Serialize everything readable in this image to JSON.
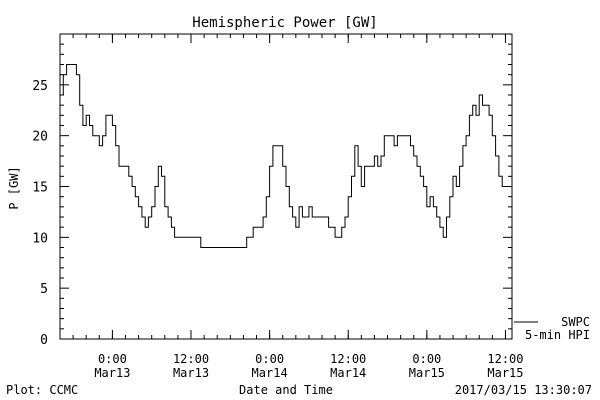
{
  "chart_data": {
    "type": "line",
    "title": "Hemispheric Power [GW]",
    "xlabel": "Date and Time",
    "ylabel": "P [GW]",
    "ylim": [
      0,
      30
    ],
    "y_ticks": [
      0,
      5,
      10,
      15,
      20,
      25
    ],
    "xlim": [
      "2017-03-12T16:00",
      "2017-03-15T13:00"
    ],
    "x_ticks": [
      {
        "t": "2017-03-13T00:00",
        "line1": "0:00",
        "line2": "Mar13"
      },
      {
        "t": "2017-03-13T12:00",
        "line1": "12:00",
        "line2": "Mar13"
      },
      {
        "t": "2017-03-14T00:00",
        "line1": "0:00",
        "line2": "Mar14"
      },
      {
        "t": "2017-03-14T12:00",
        "line1": "12:00",
        "line2": "Mar14"
      },
      {
        "t": "2017-03-15T00:00",
        "line1": "0:00",
        "line2": "Mar15"
      },
      {
        "t": "2017-03-15T12:00",
        "line1": "12:00",
        "line2": "Mar15"
      }
    ],
    "grid": false,
    "legend_position": "bottom-right, outside plot",
    "series": [
      {
        "name": "SWPC",
        "color": "#000000",
        "points": [
          [
            "2017-03-12T16:00",
            24
          ],
          [
            "2017-03-12T16:30",
            26
          ],
          [
            "2017-03-12T17:00",
            27
          ],
          [
            "2017-03-12T18:00",
            27
          ],
          [
            "2017-03-12T18:30",
            26
          ],
          [
            "2017-03-12T19:00",
            23
          ],
          [
            "2017-03-12T19:30",
            21
          ],
          [
            "2017-03-12T20:00",
            22
          ],
          [
            "2017-03-12T20:30",
            21
          ],
          [
            "2017-03-12T21:00",
            20
          ],
          [
            "2017-03-12T22:00",
            19
          ],
          [
            "2017-03-12T22:30",
            20
          ],
          [
            "2017-03-12T23:00",
            22
          ],
          [
            "2017-03-12T23:30",
            22
          ],
          [
            "2017-03-13T00:00",
            21
          ],
          [
            "2017-03-13T00:30",
            19
          ],
          [
            "2017-03-13T01:00",
            17
          ],
          [
            "2017-03-13T02:00",
            17
          ],
          [
            "2017-03-13T02:30",
            16
          ],
          [
            "2017-03-13T03:00",
            15
          ],
          [
            "2017-03-13T03:30",
            14
          ],
          [
            "2017-03-13T04:00",
            13
          ],
          [
            "2017-03-13T04:30",
            12
          ],
          [
            "2017-03-13T05:00",
            11
          ],
          [
            "2017-03-13T05:30",
            12
          ],
          [
            "2017-03-13T06:00",
            13
          ],
          [
            "2017-03-13T06:30",
            15
          ],
          [
            "2017-03-13T07:00",
            17
          ],
          [
            "2017-03-13T07:30",
            16
          ],
          [
            "2017-03-13T08:00",
            13
          ],
          [
            "2017-03-13T08:30",
            12
          ],
          [
            "2017-03-13T09:00",
            11
          ],
          [
            "2017-03-13T09:30",
            10
          ],
          [
            "2017-03-13T11:00",
            10
          ],
          [
            "2017-03-13T12:00",
            10
          ],
          [
            "2017-03-13T13:00",
            10
          ],
          [
            "2017-03-13T13:30",
            9
          ],
          [
            "2017-03-13T15:00",
            9
          ],
          [
            "2017-03-13T17:00",
            9
          ],
          [
            "2017-03-13T19:00",
            9
          ],
          [
            "2017-03-13T20:00",
            9
          ],
          [
            "2017-03-13T20:30",
            10
          ],
          [
            "2017-03-13T21:00",
            10
          ],
          [
            "2017-03-13T21:30",
            11
          ],
          [
            "2017-03-13T22:30",
            11
          ],
          [
            "2017-03-13T23:00",
            12
          ],
          [
            "2017-03-13T23:30",
            14
          ],
          [
            "2017-03-14T00:00",
            17
          ],
          [
            "2017-03-14T00:30",
            19
          ],
          [
            "2017-03-14T01:30",
            19
          ],
          [
            "2017-03-14T02:00",
            17
          ],
          [
            "2017-03-14T02:30",
            15
          ],
          [
            "2017-03-14T03:00",
            13
          ],
          [
            "2017-03-14T03:30",
            12
          ],
          [
            "2017-03-14T04:00",
            11
          ],
          [
            "2017-03-14T04:30",
            13
          ],
          [
            "2017-03-14T05:00",
            12
          ],
          [
            "2017-03-14T05:30",
            12
          ],
          [
            "2017-03-14T06:00",
            13
          ],
          [
            "2017-03-14T06:30",
            12
          ],
          [
            "2017-03-14T07:30",
            12
          ],
          [
            "2017-03-14T08:30",
            12
          ],
          [
            "2017-03-14T09:00",
            11
          ],
          [
            "2017-03-14T09:30",
            11
          ],
          [
            "2017-03-14T10:00",
            10
          ],
          [
            "2017-03-14T10:30",
            10
          ],
          [
            "2017-03-14T11:00",
            11
          ],
          [
            "2017-03-14T11:30",
            12
          ],
          [
            "2017-03-14T12:00",
            14
          ],
          [
            "2017-03-14T12:30",
            16
          ],
          [
            "2017-03-14T13:00",
            19
          ],
          [
            "2017-03-14T13:30",
            17
          ],
          [
            "2017-03-14T14:00",
            15
          ],
          [
            "2017-03-14T14:30",
            17
          ],
          [
            "2017-03-14T15:30",
            17
          ],
          [
            "2017-03-14T16:00",
            18
          ],
          [
            "2017-03-14T16:30",
            17
          ],
          [
            "2017-03-14T17:00",
            18
          ],
          [
            "2017-03-14T17:30",
            20
          ],
          [
            "2017-03-14T18:30",
            20
          ],
          [
            "2017-03-14T19:00",
            19
          ],
          [
            "2017-03-14T19:30",
            20
          ],
          [
            "2017-03-14T20:00",
            20
          ],
          [
            "2017-03-14T21:30",
            19
          ],
          [
            "2017-03-14T22:00",
            18
          ],
          [
            "2017-03-14T22:30",
            17
          ],
          [
            "2017-03-14T23:00",
            16
          ],
          [
            "2017-03-14T23:30",
            15
          ],
          [
            "2017-03-15T00:00",
            13
          ],
          [
            "2017-03-15T00:30",
            14
          ],
          [
            "2017-03-15T01:00",
            13
          ],
          [
            "2017-03-15T01:30",
            12
          ],
          [
            "2017-03-15T02:00",
            11
          ],
          [
            "2017-03-15T02:30",
            10
          ],
          [
            "2017-03-15T03:00",
            12
          ],
          [
            "2017-03-15T03:30",
            14
          ],
          [
            "2017-03-15T04:00",
            16
          ],
          [
            "2017-03-15T04:30",
            15
          ],
          [
            "2017-03-15T05:00",
            17
          ],
          [
            "2017-03-15T05:30",
            19
          ],
          [
            "2017-03-15T06:00",
            20
          ],
          [
            "2017-03-15T06:30",
            22
          ],
          [
            "2017-03-15T07:00",
            23
          ],
          [
            "2017-03-15T07:30",
            22
          ],
          [
            "2017-03-15T08:00",
            24
          ],
          [
            "2017-03-15T08:30",
            23
          ],
          [
            "2017-03-15T09:00",
            23
          ],
          [
            "2017-03-15T09:30",
            22
          ],
          [
            "2017-03-15T10:00",
            20
          ],
          [
            "2017-03-15T10:30",
            18
          ],
          [
            "2017-03-15T11:00",
            16
          ],
          [
            "2017-03-15T11:30",
            15
          ],
          [
            "2017-03-15T12:00",
            15
          ],
          [
            "2017-03-15T13:00",
            15
          ]
        ]
      },
      {
        "name": "5-min HPI",
        "color": "#000000",
        "points": []
      }
    ]
  },
  "footer": {
    "left": "Plot: CCMC",
    "center": "Date and Time",
    "right": "2017/03/15 13:30:07"
  }
}
